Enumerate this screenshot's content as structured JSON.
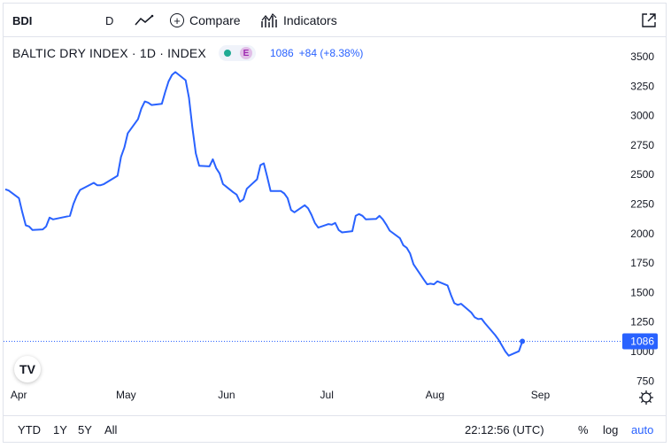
{
  "toolbar": {
    "symbol": "BDI",
    "interval": "D",
    "compare_label": "Compare",
    "indicators_label": "Indicators"
  },
  "legend": {
    "title": "BALTIC DRY INDEX · 1D · INDEX",
    "badge": "E",
    "price": "1086",
    "change": "+84 (+8.38%)"
  },
  "colors": {
    "line": "#2962ff",
    "axis_text": "#131722",
    "badge_bg": "#2962ff"
  },
  "chart_data": {
    "type": "line",
    "series": [
      {
        "values": [
          {
            "x": "2022-03-31",
            "y": 2375
          },
          {
            "x": "2022-04-01",
            "y": 2365
          },
          {
            "x": "2022-04-04",
            "y": 2300
          },
          {
            "x": "2022-04-05",
            "y": 2180
          },
          {
            "x": "2022-04-06",
            "y": 2070
          },
          {
            "x": "2022-04-07",
            "y": 2060
          },
          {
            "x": "2022-04-08",
            "y": 2030
          },
          {
            "x": "2022-04-11",
            "y": 2035
          },
          {
            "x": "2022-04-12",
            "y": 2060
          },
          {
            "x": "2022-04-13",
            "y": 2135
          },
          {
            "x": "2022-04-14",
            "y": 2120
          },
          {
            "x": "2022-04-19",
            "y": 2150
          },
          {
            "x": "2022-04-20",
            "y": 2250
          },
          {
            "x": "2022-04-21",
            "y": 2320
          },
          {
            "x": "2022-04-22",
            "y": 2370
          },
          {
            "x": "2022-04-25",
            "y": 2415
          },
          {
            "x": "2022-04-26",
            "y": 2430
          },
          {
            "x": "2022-04-27",
            "y": 2410
          },
          {
            "x": "2022-04-28",
            "y": 2410
          },
          {
            "x": "2022-04-29",
            "y": 2420
          },
          {
            "x": "2022-05-03",
            "y": 2490
          },
          {
            "x": "2022-05-04",
            "y": 2650
          },
          {
            "x": "2022-05-05",
            "y": 2730
          },
          {
            "x": "2022-05-06",
            "y": 2850
          },
          {
            "x": "2022-05-09",
            "y": 2970
          },
          {
            "x": "2022-05-10",
            "y": 3060
          },
          {
            "x": "2022-05-11",
            "y": 3120
          },
          {
            "x": "2022-05-12",
            "y": 3110
          },
          {
            "x": "2022-05-13",
            "y": 3090
          },
          {
            "x": "2022-05-16",
            "y": 3100
          },
          {
            "x": "2022-05-17",
            "y": 3200
          },
          {
            "x": "2022-05-18",
            "y": 3290
          },
          {
            "x": "2022-05-19",
            "y": 3345
          },
          {
            "x": "2022-05-20",
            "y": 3369
          },
          {
            "x": "2022-05-23",
            "y": 3300
          },
          {
            "x": "2022-05-24",
            "y": 3150
          },
          {
            "x": "2022-05-25",
            "y": 2900
          },
          {
            "x": "2022-05-26",
            "y": 2680
          },
          {
            "x": "2022-05-27",
            "y": 2575
          },
          {
            "x": "2022-05-30",
            "y": 2570
          },
          {
            "x": "2022-05-31",
            "y": 2630
          },
          {
            "x": "2022-06-01",
            "y": 2555
          },
          {
            "x": "2022-06-02",
            "y": 2510
          },
          {
            "x": "2022-06-03",
            "y": 2420
          },
          {
            "x": "2022-06-06",
            "y": 2350
          },
          {
            "x": "2022-06-07",
            "y": 2330
          },
          {
            "x": "2022-06-08",
            "y": 2270
          },
          {
            "x": "2022-06-09",
            "y": 2290
          },
          {
            "x": "2022-06-10",
            "y": 2380
          },
          {
            "x": "2022-06-13",
            "y": 2460
          },
          {
            "x": "2022-06-14",
            "y": 2580
          },
          {
            "x": "2022-06-15",
            "y": 2595
          },
          {
            "x": "2022-06-16",
            "y": 2480
          },
          {
            "x": "2022-06-17",
            "y": 2360
          },
          {
            "x": "2022-06-20",
            "y": 2360
          },
          {
            "x": "2022-06-21",
            "y": 2340
          },
          {
            "x": "2022-06-22",
            "y": 2300
          },
          {
            "x": "2022-06-23",
            "y": 2200
          },
          {
            "x": "2022-06-24",
            "y": 2180
          },
          {
            "x": "2022-06-27",
            "y": 2240
          },
          {
            "x": "2022-06-28",
            "y": 2215
          },
          {
            "x": "2022-06-29",
            "y": 2160
          },
          {
            "x": "2022-06-30",
            "y": 2090
          },
          {
            "x": "2022-07-01",
            "y": 2050
          },
          {
            "x": "2022-07-04",
            "y": 2080
          },
          {
            "x": "2022-07-05",
            "y": 2075
          },
          {
            "x": "2022-07-06",
            "y": 2090
          },
          {
            "x": "2022-07-07",
            "y": 2030
          },
          {
            "x": "2022-07-08",
            "y": 2010
          },
          {
            "x": "2022-07-11",
            "y": 2020
          },
          {
            "x": "2022-07-12",
            "y": 2150
          },
          {
            "x": "2022-07-13",
            "y": 2165
          },
          {
            "x": "2022-07-14",
            "y": 2150
          },
          {
            "x": "2022-07-15",
            "y": 2120
          },
          {
            "x": "2022-07-18",
            "y": 2125
          },
          {
            "x": "2022-07-19",
            "y": 2150
          },
          {
            "x": "2022-07-20",
            "y": 2120
          },
          {
            "x": "2022-07-21",
            "y": 2075
          },
          {
            "x": "2022-07-22",
            "y": 2025
          },
          {
            "x": "2022-07-25",
            "y": 1960
          },
          {
            "x": "2022-07-26",
            "y": 1900
          },
          {
            "x": "2022-07-27",
            "y": 1880
          },
          {
            "x": "2022-07-28",
            "y": 1830
          },
          {
            "x": "2022-07-29",
            "y": 1740
          },
          {
            "x": "2022-08-01",
            "y": 1610
          },
          {
            "x": "2022-08-02",
            "y": 1570
          },
          {
            "x": "2022-08-03",
            "y": 1575
          },
          {
            "x": "2022-08-04",
            "y": 1570
          },
          {
            "x": "2022-08-05",
            "y": 1595
          },
          {
            "x": "2022-08-08",
            "y": 1560
          },
          {
            "x": "2022-08-09",
            "y": 1480
          },
          {
            "x": "2022-08-10",
            "y": 1410
          },
          {
            "x": "2022-08-11",
            "y": 1395
          },
          {
            "x": "2022-08-12",
            "y": 1405
          },
          {
            "x": "2022-08-15",
            "y": 1330
          },
          {
            "x": "2022-08-16",
            "y": 1290
          },
          {
            "x": "2022-08-17",
            "y": 1275
          },
          {
            "x": "2022-08-18",
            "y": 1278
          },
          {
            "x": "2022-08-19",
            "y": 1240
          },
          {
            "x": "2022-08-22",
            "y": 1140
          },
          {
            "x": "2022-08-23",
            "y": 1100
          },
          {
            "x": "2022-08-24",
            "y": 1050
          },
          {
            "x": "2022-08-25",
            "y": 1000
          },
          {
            "x": "2022-08-26",
            "y": 965
          },
          {
            "x": "2022-08-29",
            "y": 1002
          },
          {
            "x": "2022-08-30",
            "y": 1086
          }
        ]
      }
    ],
    "x_range": [
      "2022-03-31",
      "2022-09-25"
    ],
    "ylim": [
      750,
      3500
    ],
    "x_ticks": [
      {
        "label": "Apr",
        "date": "2022-04-01"
      },
      {
        "label": "May",
        "date": "2022-05-02"
      },
      {
        "label": "Jun",
        "date": "2022-06-01"
      },
      {
        "label": "Jul",
        "date": "2022-07-01"
      },
      {
        "label": "Aug",
        "date": "2022-08-01"
      },
      {
        "label": "Sep",
        "date": "2022-09-01"
      }
    ],
    "y_ticks": [
      3500,
      3250,
      3000,
      2750,
      2500,
      2250,
      2000,
      1750,
      1500,
      1250,
      1000,
      750
    ],
    "last_value_label": "1086",
    "grid": false,
    "legend": "none"
  },
  "bottom_bar": {
    "ranges": [
      "YTD",
      "1Y",
      "5Y",
      "All"
    ],
    "time": "22:12:56 (UTC)",
    "pct_label": "%",
    "log_label": "log",
    "auto_label": "auto"
  },
  "logo": "TV"
}
